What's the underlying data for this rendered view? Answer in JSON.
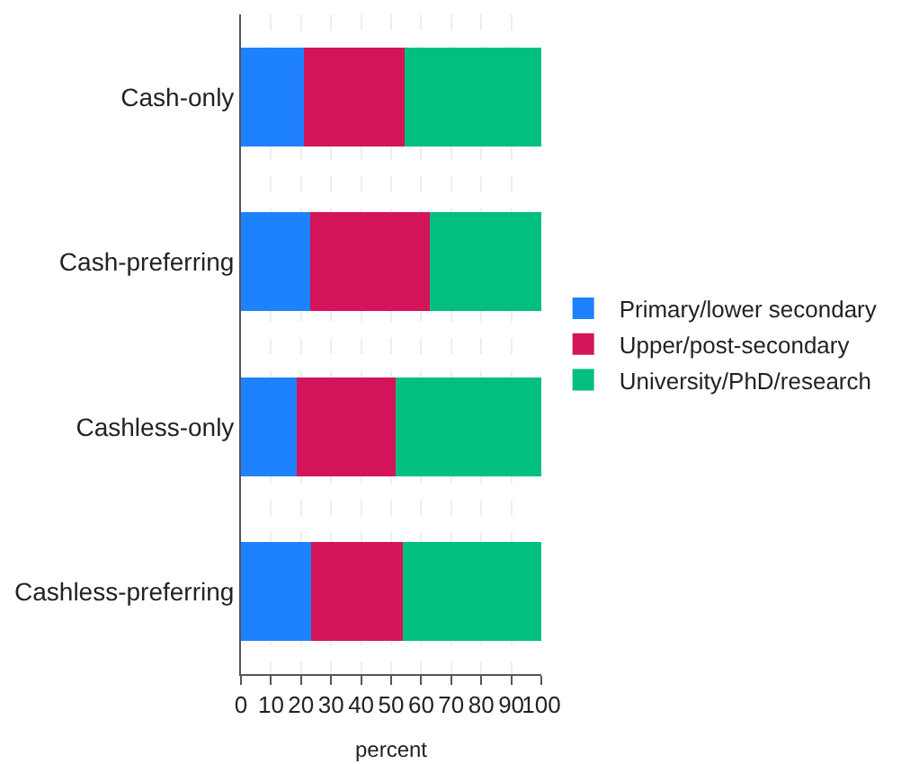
{
  "chart_data": {
    "type": "bar",
    "orientation": "horizontal",
    "stacked": true,
    "categories": [
      "Cash-only",
      "Cash-preferring",
      "Cashless-only",
      "Cashless-preferring"
    ],
    "series": [
      {
        "name": "Primary/lower secondary",
        "color": "#1e82ff",
        "values": [
          21,
          23,
          18.5,
          23.3
        ]
      },
      {
        "name": "Upper/post-secondary",
        "color": "#d4145a",
        "values": [
          33.6,
          39.8,
          33.1,
          30.7
        ]
      },
      {
        "name": "University/PhD/research",
        "color": "#00bf7f",
        "values": [
          45.4,
          37.2,
          48.4,
          46
        ]
      }
    ],
    "xlabel": "percent",
    "xlim": [
      0,
      100
    ],
    "xticks": [
      0,
      10,
      20,
      30,
      40,
      50,
      60,
      70,
      80,
      90,
      100
    ],
    "grid": "x",
    "legend": "right"
  }
}
